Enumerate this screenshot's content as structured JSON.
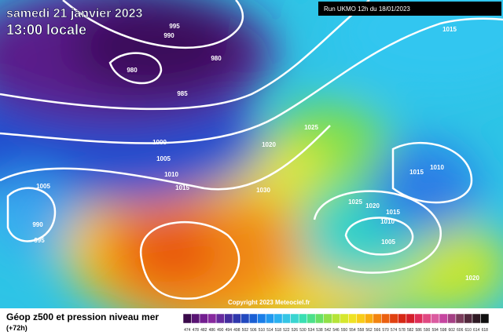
{
  "header": {
    "title": "samedi 21 janvier 2023",
    "time": "13:00 locale",
    "run": "Run UKMO 12h du 18/01/2023"
  },
  "isobar_labels": [
    995,
    990,
    980,
    980,
    985,
    1015,
    1025,
    1000,
    1020,
    1005,
    1010,
    1015,
    1005,
    1030,
    1015,
    1010,
    990,
    995,
    1025,
    1020,
    1015,
    1010,
    1005,
    1020
  ],
  "footer": {
    "copyright": "Copyright 2023 Meteociel.fr",
    "caption": "Géop z500 et pression niveau mer",
    "lead": "(+72h)"
  },
  "scale_labels": [
    474,
    478,
    482,
    486,
    490,
    494,
    498,
    502,
    506,
    510,
    514,
    518,
    522,
    526,
    530,
    534,
    538,
    542,
    546,
    550,
    554,
    558,
    562,
    566,
    570,
    574,
    578,
    582,
    586,
    590,
    594,
    598,
    602,
    606,
    610,
    614,
    618
  ]
}
